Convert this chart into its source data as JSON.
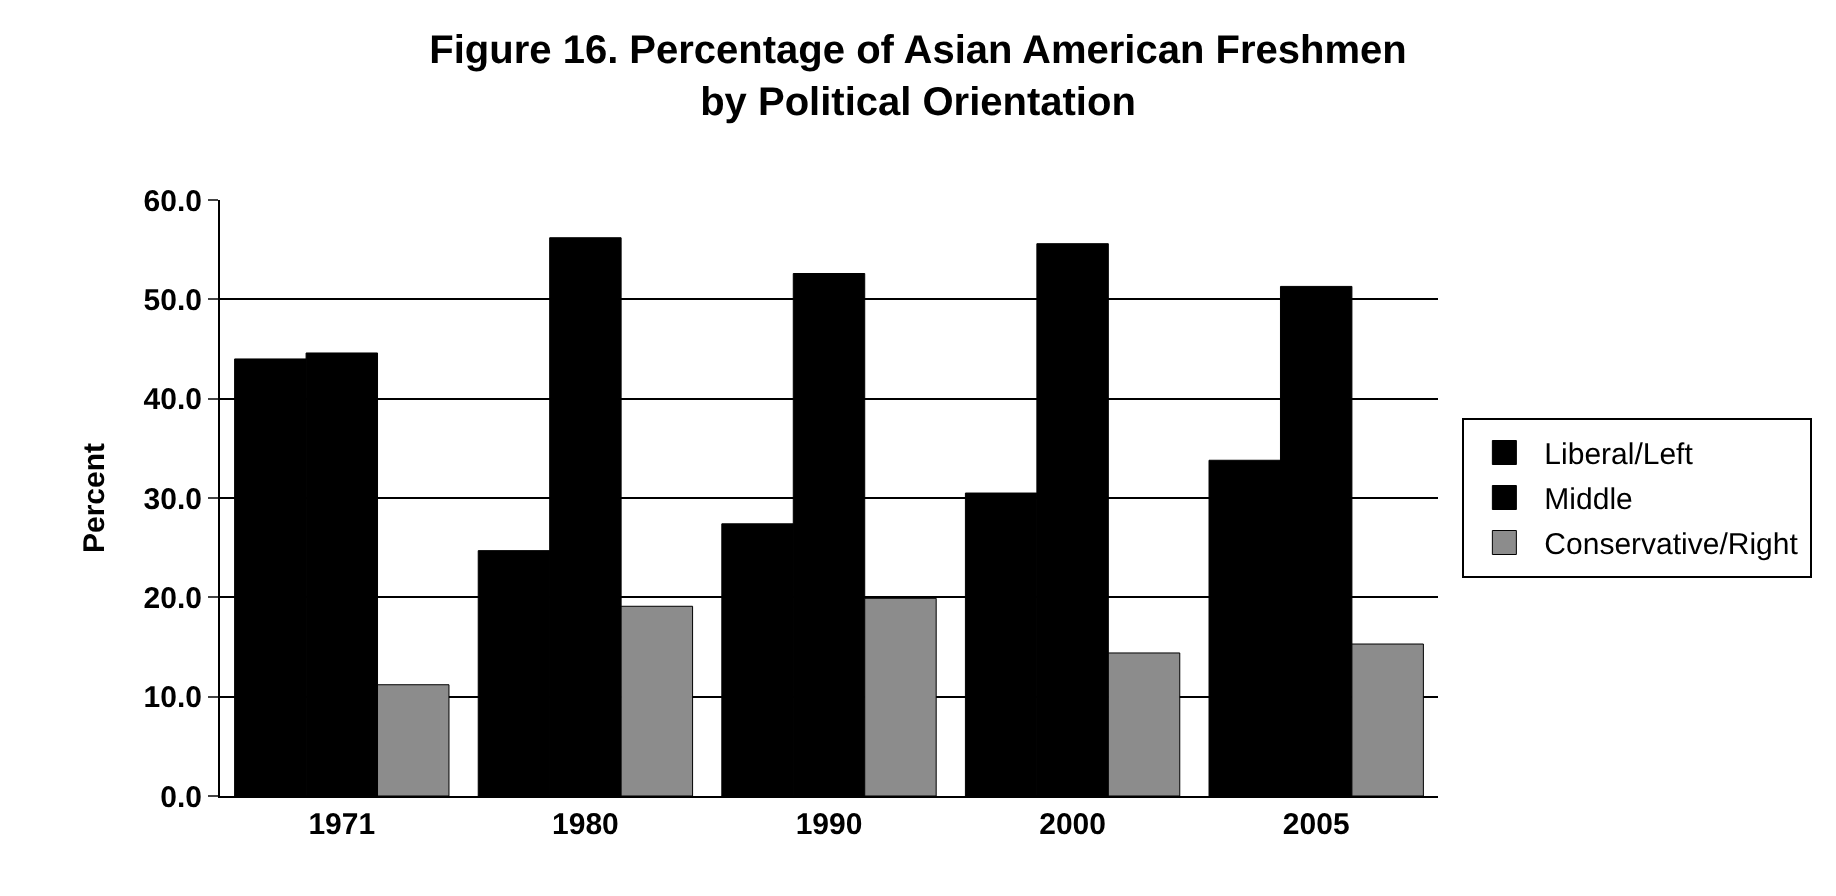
{
  "chart_data": {
    "type": "bar",
    "title": "Figure 16. Percentage of Asian American Freshmen\nby Political Orientation",
    "ylabel": "Percent",
    "categories": [
      "1971",
      "1980",
      "1990",
      "2000",
      "2005"
    ],
    "series": [
      {
        "name": "Liberal/Left",
        "color": "#000000",
        "values": [
          44.0,
          24.7,
          27.4,
          30.5,
          33.8
        ]
      },
      {
        "name": "Middle",
        "color": "#000000",
        "values": [
          44.6,
          56.2,
          52.6,
          55.6,
          51.3
        ]
      },
      {
        "name": "Conservative/Right",
        "color": "#8c8c8c",
        "values": [
          11.2,
          19.1,
          19.9,
          14.4,
          15.3
        ]
      }
    ],
    "ylim": [
      0,
      60
    ],
    "yticks": [
      {
        "value": 0,
        "label": "0.0"
      },
      {
        "value": 10,
        "label": "10.0"
      },
      {
        "value": 20,
        "label": "20.0"
      },
      {
        "value": 30,
        "label": "30.0"
      },
      {
        "value": 40,
        "label": "40.0"
      },
      {
        "value": 50,
        "label": "50.0"
      },
      {
        "value": 60,
        "label": "60.0"
      }
    ],
    "grid": "y",
    "legend": "right"
  }
}
